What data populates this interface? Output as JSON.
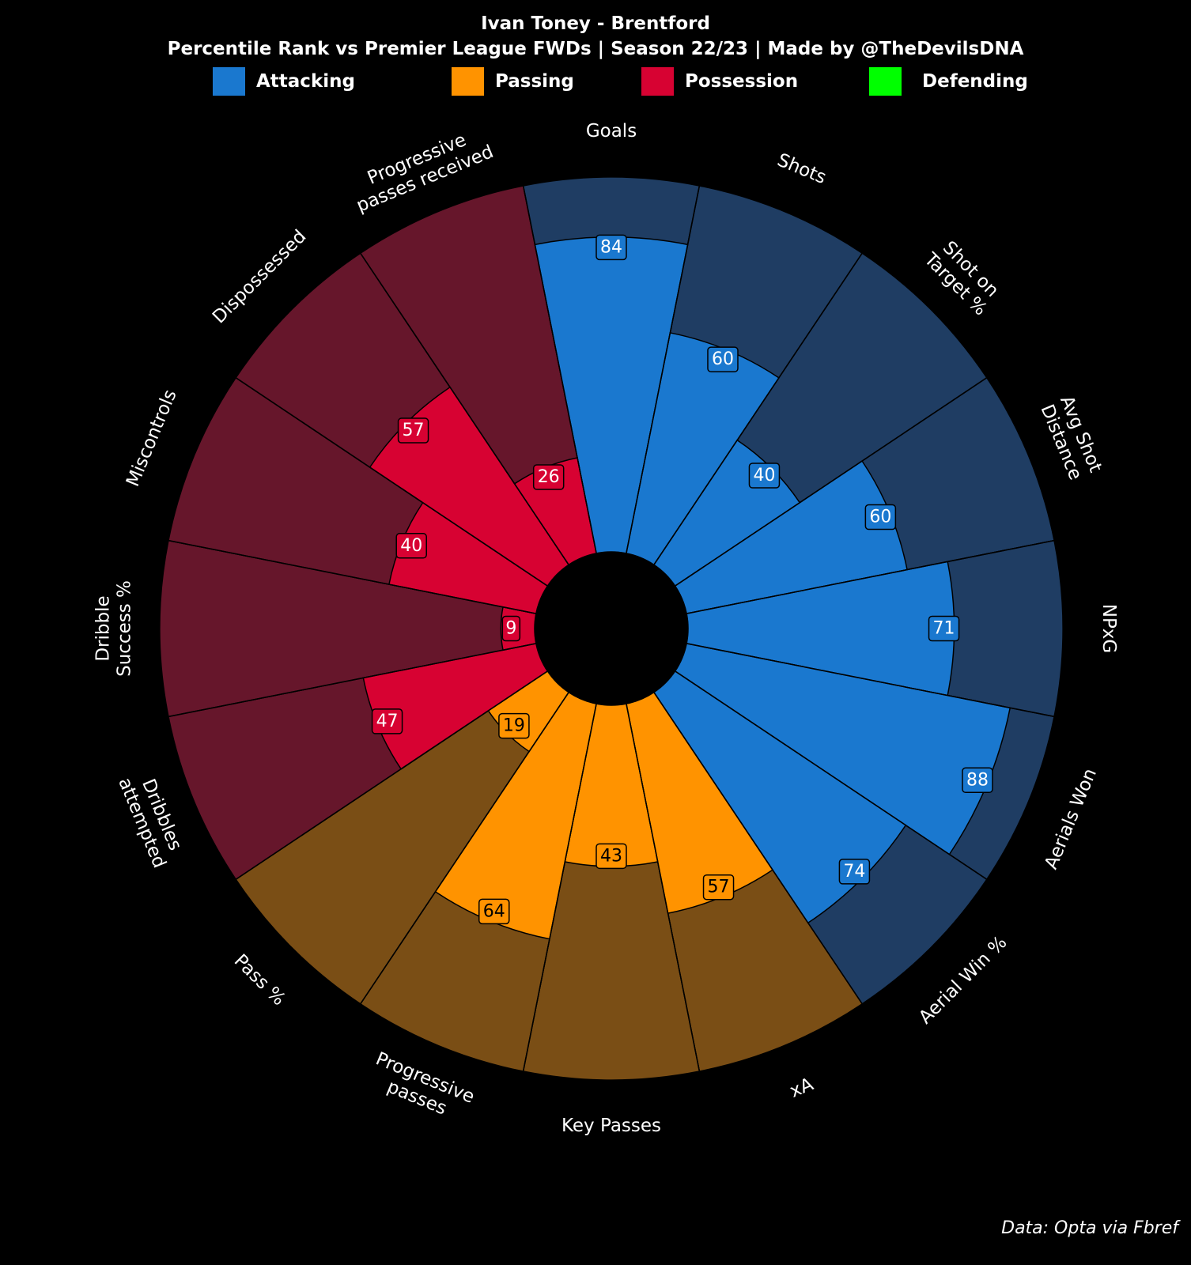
{
  "header": {
    "title": "Ivan Toney - Brentford",
    "subtitle": "Percentile Rank vs Premier League FWDs | Season 22/23 | Made by @TheDevilsDNA"
  },
  "legend": [
    {
      "label": "Attacking",
      "color": "#1a78cf"
    },
    {
      "label": "Passing",
      "color": "#ff9300"
    },
    {
      "label": "Possession",
      "color": "#d70232"
    },
    {
      "label": "Defending",
      "color": "#00ff00"
    }
  ],
  "colors": {
    "background": "#000000",
    "Attacking": {
      "fill": "#1a78cf",
      "bg": "#1f3d63"
    },
    "Passing": {
      "fill": "#ff9300",
      "bg": "#7a4e15"
    },
    "Possession": {
      "fill": "#d70232",
      "bg": "#66162b"
    }
  },
  "chart_data": {
    "type": "radial-bar",
    "range": [
      0,
      100
    ],
    "categories": [
      {
        "label": "Goals",
        "value": 84,
        "group": "Attacking"
      },
      {
        "label": "Shots",
        "value": 60,
        "group": "Attacking"
      },
      {
        "label": "Shot on\nTarget %",
        "value": 40,
        "group": "Attacking"
      },
      {
        "label": "Avg Shot\nDistance",
        "value": 60,
        "group": "Attacking"
      },
      {
        "label": "NPxG",
        "value": 71,
        "group": "Attacking"
      },
      {
        "label": "Aerials Won",
        "value": 88,
        "group": "Attacking"
      },
      {
        "label": "Aerial Win %",
        "value": 74,
        "group": "Attacking"
      },
      {
        "label": "xA",
        "value": 57,
        "group": "Passing"
      },
      {
        "label": "Key Passes",
        "value": 43,
        "group": "Passing"
      },
      {
        "label": "Progressive\npasses",
        "value": 64,
        "group": "Passing"
      },
      {
        "label": "Pass %",
        "value": 19,
        "group": "Passing"
      },
      {
        "label": "Dribbles\nattempted",
        "value": 47,
        "group": "Possession"
      },
      {
        "label": "Dribble\nSuccess %",
        "value": 9,
        "group": "Possession"
      },
      {
        "label": "Miscontrols",
        "value": 40,
        "group": "Possession"
      },
      {
        "label": "Dispossessed",
        "value": 57,
        "group": "Possession"
      },
      {
        "label": "Progressive\npasses received",
        "value": 26,
        "group": "Possession"
      }
    ]
  },
  "source": "Data: Opta via Fbref"
}
